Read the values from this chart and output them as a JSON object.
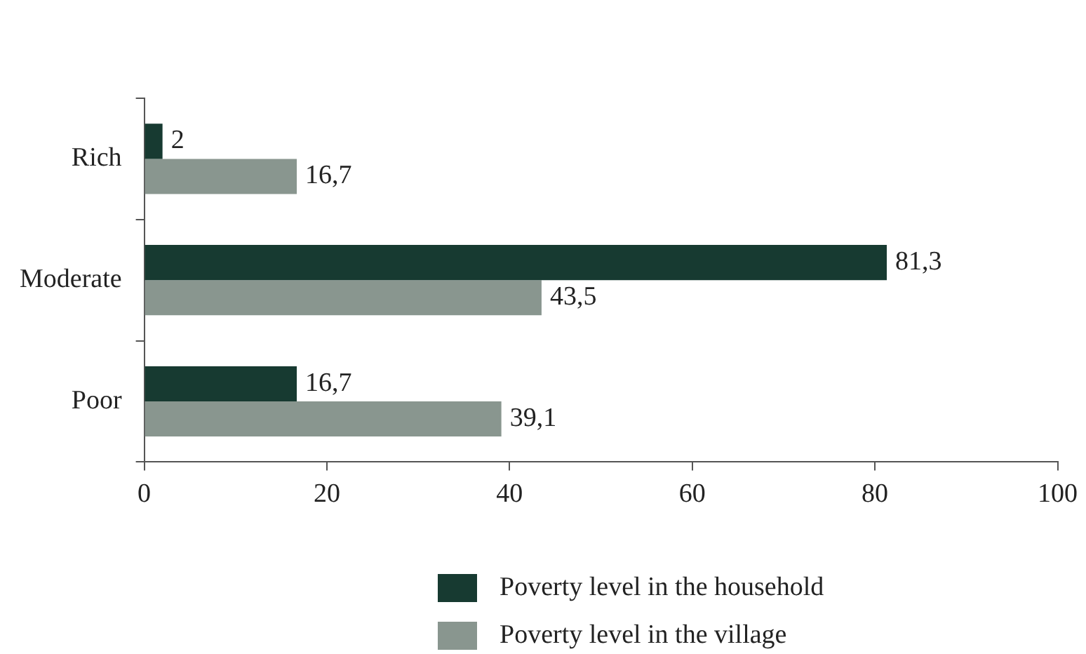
{
  "chart_data": {
    "type": "bar",
    "orientation": "horizontal",
    "categories": [
      "Rich",
      "Moderate",
      "Poor"
    ],
    "series": [
      {
        "name": "Poverty level in the household",
        "color": "#173a31",
        "values": [
          2,
          81.3,
          16.7
        ],
        "value_labels": [
          "2",
          "81,3",
          "16,7"
        ]
      },
      {
        "name": "Poverty level in the village",
        "color": "#89968f",
        "values": [
          16.7,
          43.5,
          39.1
        ],
        "value_labels": [
          "16,7",
          "43,5",
          "39,1"
        ]
      }
    ],
    "xlim": [
      0,
      100
    ],
    "xticks": [
      0,
      20,
      40,
      60,
      80,
      100
    ],
    "grid": false,
    "legend": "bottom"
  }
}
